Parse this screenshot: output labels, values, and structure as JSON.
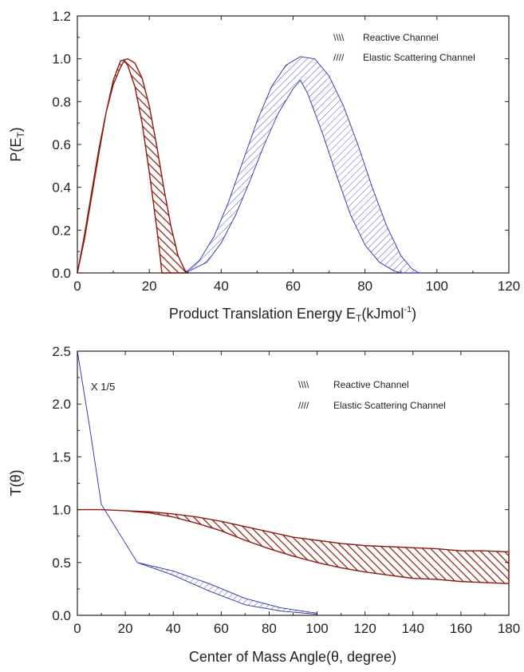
{
  "chart_data": [
    {
      "type": "area",
      "xlabel": "Product Translation Energy E",
      "xlabel_sub": "T",
      "xlabel_unit_prefix": "(kJmol",
      "xlabel_unit_sup": "-1",
      "xlabel_unit_suffix": ")",
      "ylabel": "P(E",
      "ylabel_sub": "T",
      "ylabel_suffix": ")",
      "xlim": [
        0,
        120
      ],
      "ylim": [
        0,
        1.2
      ],
      "xticks": [
        0,
        20,
        40,
        60,
        80,
        100,
        120
      ],
      "xtick_labels": [
        "0",
        "20",
        "40",
        "60",
        "80",
        "100",
        "120"
      ],
      "yticks": [
        0,
        0.2,
        0.4,
        0.6,
        0.8,
        1.0,
        1.2
      ],
      "ytick_labels": [
        "0.0",
        "0.2",
        "0.4",
        "0.6",
        "0.8",
        "1.0",
        "1.2"
      ],
      "grid": false,
      "legend_position": "top-right",
      "series": [
        {
          "name": "Reactive Channel",
          "color": "#8b1a0e",
          "hatch": "backslash",
          "upper": [
            [
              0,
              0
            ],
            [
              2,
              0.16
            ],
            [
              4,
              0.36
            ],
            [
              6,
              0.56
            ],
            [
              8,
              0.75
            ],
            [
              10,
              0.9
            ],
            [
              12,
              0.99
            ],
            [
              14,
              1.0
            ],
            [
              16,
              0.98
            ],
            [
              18,
              0.91
            ],
            [
              20,
              0.78
            ],
            [
              22,
              0.6
            ],
            [
              24,
              0.4
            ],
            [
              26,
              0.22
            ],
            [
              28,
              0.08
            ],
            [
              30,
              0.01
            ],
            [
              31,
              0
            ]
          ],
          "lower": [
            [
              0,
              0
            ],
            [
              2,
              0.18
            ],
            [
              4,
              0.38
            ],
            [
              6,
              0.58
            ],
            [
              8,
              0.75
            ],
            [
              10,
              0.88
            ],
            [
              12,
              0.96
            ],
            [
              13,
              0.99
            ],
            [
              14,
              0.97
            ],
            [
              16,
              0.87
            ],
            [
              18,
              0.7
            ],
            [
              20,
              0.47
            ],
            [
              22,
              0.22
            ],
            [
              23,
              0.08
            ],
            [
              23.5,
              0
            ]
          ]
        },
        {
          "name": "Elastic Scattering Channel",
          "color": "#2a2aa8",
          "hatch": "slash",
          "upper": [
            [
              30,
              0
            ],
            [
              34,
              0.06
            ],
            [
              38,
              0.17
            ],
            [
              42,
              0.33
            ],
            [
              46,
              0.52
            ],
            [
              50,
              0.71
            ],
            [
              54,
              0.87
            ],
            [
              58,
              0.97
            ],
            [
              62,
              1.01
            ],
            [
              66,
              1.0
            ],
            [
              70,
              0.92
            ],
            [
              74,
              0.78
            ],
            [
              78,
              0.6
            ],
            [
              82,
              0.4
            ],
            [
              86,
              0.22
            ],
            [
              90,
              0.08
            ],
            [
              93,
              0.02
            ],
            [
              95,
              0
            ]
          ],
          "lower": [
            [
              30,
              0
            ],
            [
              36,
              0.05
            ],
            [
              40,
              0.14
            ],
            [
              44,
              0.27
            ],
            [
              48,
              0.43
            ],
            [
              52,
              0.6
            ],
            [
              56,
              0.75
            ],
            [
              60,
              0.86
            ],
            [
              62,
              0.9
            ],
            [
              64,
              0.84
            ],
            [
              68,
              0.66
            ],
            [
              72,
              0.46
            ],
            [
              76,
              0.27
            ],
            [
              80,
              0.13
            ],
            [
              84,
              0.05
            ],
            [
              88,
              0.01
            ],
            [
              90,
              0
            ]
          ]
        }
      ],
      "legend": [
        {
          "symbol": "\\\\\\\\",
          "label": "Reactive Channel"
        },
        {
          "symbol": "////",
          "label": "Elastic Scattering Channel"
        }
      ]
    },
    {
      "type": "area",
      "xlabel": "Center of Mass Angle(θ, degree)",
      "ylabel": "T(θ)",
      "xlim": [
        0,
        180
      ],
      "ylim": [
        0,
        2.5
      ],
      "xticks": [
        0,
        20,
        40,
        60,
        80,
        100,
        120,
        140,
        160,
        180
      ],
      "xtick_labels": [
        "0",
        "20",
        "40",
        "60",
        "80",
        "100",
        "120",
        "140",
        "160",
        "180"
      ],
      "yticks": [
        0,
        0.5,
        1.0,
        1.5,
        2.0,
        2.5
      ],
      "ytick_labels": [
        "0.0",
        "0.5",
        "1.0",
        "1.5",
        "2.0",
        "2.5"
      ],
      "grid": false,
      "legend_position": "top-right",
      "annotation": "X 1/5",
      "series": [
        {
          "name": "Reactive Channel",
          "color": "#8b1a0e",
          "hatch": "backslash",
          "upper": [
            [
              0,
              1.0
            ],
            [
              10,
              1.0
            ],
            [
              20,
              0.99
            ],
            [
              30,
              0.98
            ],
            [
              40,
              0.96
            ],
            [
              50,
              0.93
            ],
            [
              60,
              0.89
            ],
            [
              70,
              0.84
            ],
            [
              80,
              0.79
            ],
            [
              90,
              0.74
            ],
            [
              100,
              0.71
            ],
            [
              110,
              0.68
            ],
            [
              120,
              0.66
            ],
            [
              130,
              0.65
            ],
            [
              140,
              0.64
            ],
            [
              150,
              0.63
            ],
            [
              160,
              0.61
            ],
            [
              170,
              0.61
            ],
            [
              180,
              0.6
            ]
          ],
          "lower": [
            [
              0,
              1.0
            ],
            [
              10,
              1.0
            ],
            [
              20,
              0.99
            ],
            [
              30,
              0.97
            ],
            [
              40,
              0.93
            ],
            [
              50,
              0.87
            ],
            [
              60,
              0.8
            ],
            [
              70,
              0.71
            ],
            [
              80,
              0.63
            ],
            [
              90,
              0.56
            ],
            [
              100,
              0.5
            ],
            [
              110,
              0.45
            ],
            [
              120,
              0.41
            ],
            [
              130,
              0.38
            ],
            [
              140,
              0.35
            ],
            [
              150,
              0.34
            ],
            [
              160,
              0.32
            ],
            [
              170,
              0.31
            ],
            [
              180,
              0.3
            ]
          ]
        },
        {
          "name": "Elastic Scattering Channel",
          "color": "#2a2aa8",
          "hatch": "slash",
          "upper": [
            [
              0,
              2.7
            ],
            [
              5,
              1.8
            ],
            [
              10,
              1.05
            ],
            [
              25,
              0.5
            ],
            [
              40,
              0.42
            ],
            [
              55,
              0.3
            ],
            [
              70,
              0.16
            ],
            [
              85,
              0.07
            ],
            [
              100,
              0.02
            ]
          ],
          "lower": [
            [
              0,
              2.7
            ],
            [
              5,
              1.8
            ],
            [
              10,
              1.05
            ],
            [
              25,
              0.5
            ],
            [
              40,
              0.38
            ],
            [
              55,
              0.23
            ],
            [
              70,
              0.1
            ],
            [
              85,
              0.04
            ],
            [
              100,
              0.01
            ]
          ]
        }
      ],
      "legend": [
        {
          "symbol": "\\\\\\\\",
          "label": "Reactive Channel"
        },
        {
          "symbol": "////",
          "label": "Elastic Scattering Channel"
        }
      ]
    }
  ]
}
